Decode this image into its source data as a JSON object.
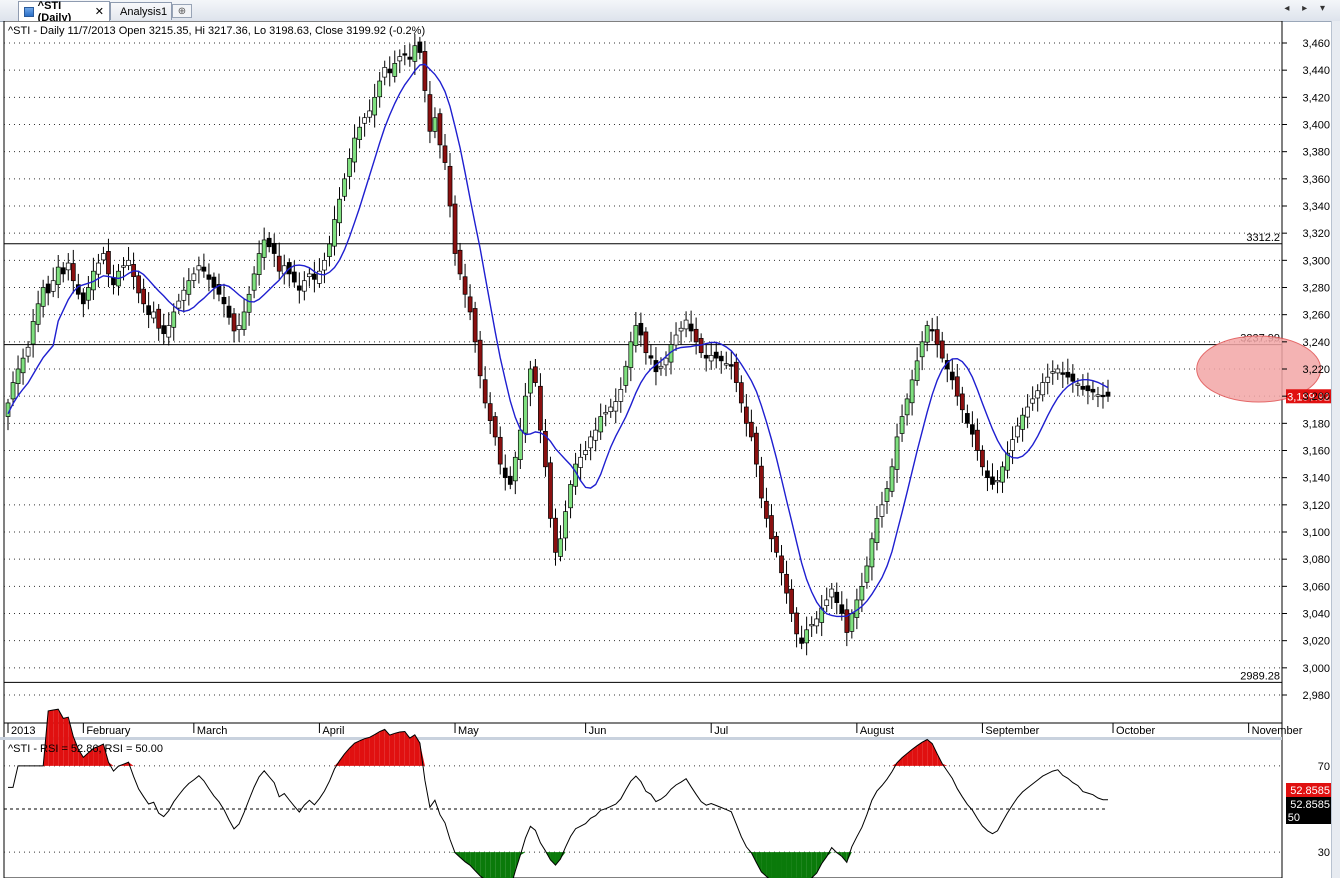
{
  "tabs": [
    {
      "label": "^STI (Daily)",
      "active": true,
      "close": "✕"
    },
    {
      "label": "Analysis1",
      "active": false
    }
  ],
  "nav_arrows": "◂ ▸ ▾",
  "chart_data": [
    {
      "type": "candlestick",
      "title": "^STI - Daily 11/7/2013 Open 3215.35, Hi 3217.36, Lo 3198.63, Close 3199.92 (-0.2%)",
      "ylim": [
        2970,
        3470
      ],
      "y_ticks": [
        "3,460",
        "3,440",
        "3,420",
        "3,400",
        "3,380",
        "3,360",
        "3,340",
        "3,320",
        "3,300",
        "3,280",
        "3,260",
        "3,240",
        "3,220",
        "3,200",
        "3,180",
        "3,160",
        "3,140",
        "3,120",
        "3,100",
        "3,080",
        "3,060",
        "3,040",
        "3,020",
        "3,000",
        "2,980"
      ],
      "x_labels": [
        {
          "label": "2013",
          "index": 0
        },
        {
          "label": "February",
          "index": 15
        },
        {
          "label": "March",
          "index": 37
        },
        {
          "label": "April",
          "index": 62
        },
        {
          "label": "May",
          "index": 89
        },
        {
          "label": "Jun",
          "index": 115
        },
        {
          "label": "Jul",
          "index": 140
        },
        {
          "label": "August",
          "index": 169
        },
        {
          "label": "September",
          "index": 194
        },
        {
          "label": "October",
          "index": 220
        },
        {
          "label": "November",
          "index": 247
        }
      ],
      "close": [
        3195,
        3210,
        3220,
        3228,
        3236,
        3255,
        3268,
        3280,
        3276,
        3285,
        3295,
        3290,
        3298,
        3285,
        3275,
        3268,
        3280,
        3292,
        3298,
        3305,
        3290,
        3282,
        3292,
        3296,
        3300,
        3288,
        3276,
        3268,
        3260,
        3262,
        3250,
        3246,
        3252,
        3262,
        3270,
        3278,
        3285,
        3290,
        3296,
        3292,
        3286,
        3280,
        3275,
        3268,
        3258,
        3248,
        3252,
        3262,
        3275,
        3290,
        3305,
        3315,
        3310,
        3305,
        3292,
        3296,
        3290,
        3284,
        3278,
        3285,
        3290,
        3286,
        3292,
        3300,
        3312,
        3330,
        3345,
        3360,
        3375,
        3390,
        3398,
        3405,
        3410,
        3420,
        3432,
        3442,
        3438,
        3445,
        3450,
        3452,
        3448,
        3458,
        3453,
        3425,
        3395,
        3405,
        3385,
        3372,
        3340,
        3305,
        3290,
        3275,
        3262,
        3240,
        3215,
        3195,
        3182,
        3170,
        3150,
        3140,
        3135,
        3155,
        3175,
        3200,
        3220,
        3210,
        3175,
        3148,
        3110,
        3085,
        3095,
        3115,
        3135,
        3150,
        3155,
        3160,
        3170,
        3175,
        3185,
        3188,
        3192,
        3196,
        3205,
        3222,
        3240,
        3252,
        3245,
        3232,
        3228,
        3218,
        3222,
        3228,
        3238,
        3245,
        3250,
        3256,
        3248,
        3240,
        3232,
        3228,
        3230,
        3228,
        3226,
        3224,
        3222,
        3210,
        3195,
        3180,
        3170,
        3150,
        3125,
        3110,
        3095,
        3085,
        3070,
        3055,
        3040,
        3025,
        3018,
        3028,
        3032,
        3036,
        3044,
        3050,
        3058,
        3048,
        3040,
        3026,
        3040,
        3050,
        3060,
        3075,
        3095,
        3110,
        3120,
        3132,
        3148,
        3170,
        3185,
        3198,
        3212,
        3226,
        3240,
        3252,
        3248,
        3238,
        3228,
        3220,
        3212,
        3200,
        3190,
        3180,
        3172,
        3160,
        3148,
        3140,
        3135,
        3138,
        3148,
        3158,
        3168,
        3178,
        3186,
        3192,
        3198,
        3204,
        3210,
        3214,
        3218,
        3220,
        3216,
        3214,
        3211,
        3209,
        3205,
        3204,
        3203,
        3201,
        3200,
        3199.92
      ],
      "ma_line": {
        "color": "#1f1fd0"
      },
      "horizontal_lines": [
        {
          "value": 3312.2,
          "label": "3312.2"
        },
        {
          "value": 3237.99,
          "label": "3237.99"
        },
        {
          "value": 2989.28,
          "label": "2989.28"
        }
      ],
      "last_price": {
        "value": 3199.92,
        "label": "3,199.92",
        "color": "#e01010"
      },
      "highlight_ellipse": {
        "center_index": 249,
        "center_value": 3220,
        "fill": "#f3a6a6",
        "stroke": "#e05050"
      },
      "colors": {
        "up_strong": "#7fe07f",
        "down_strong": "#8b1010",
        "up": "#ffffff",
        "down": "#000000"
      }
    },
    {
      "type": "line",
      "title": "^STI - RSI = 52.86, RSI = 50.00",
      "ylim": [
        18,
        82
      ],
      "y_ticks": [
        "70",
        "30"
      ],
      "reference_line": 50,
      "labels": [
        {
          "text": "52.8585",
          "bg": "#e01010"
        },
        {
          "text": "52.8585",
          "bg": "#000000"
        },
        {
          "text": "50",
          "bg": "#000000"
        }
      ],
      "overbought_color": "#e01010",
      "oversold_color": "#0a7a0a",
      "line_color": "#000000"
    }
  ]
}
